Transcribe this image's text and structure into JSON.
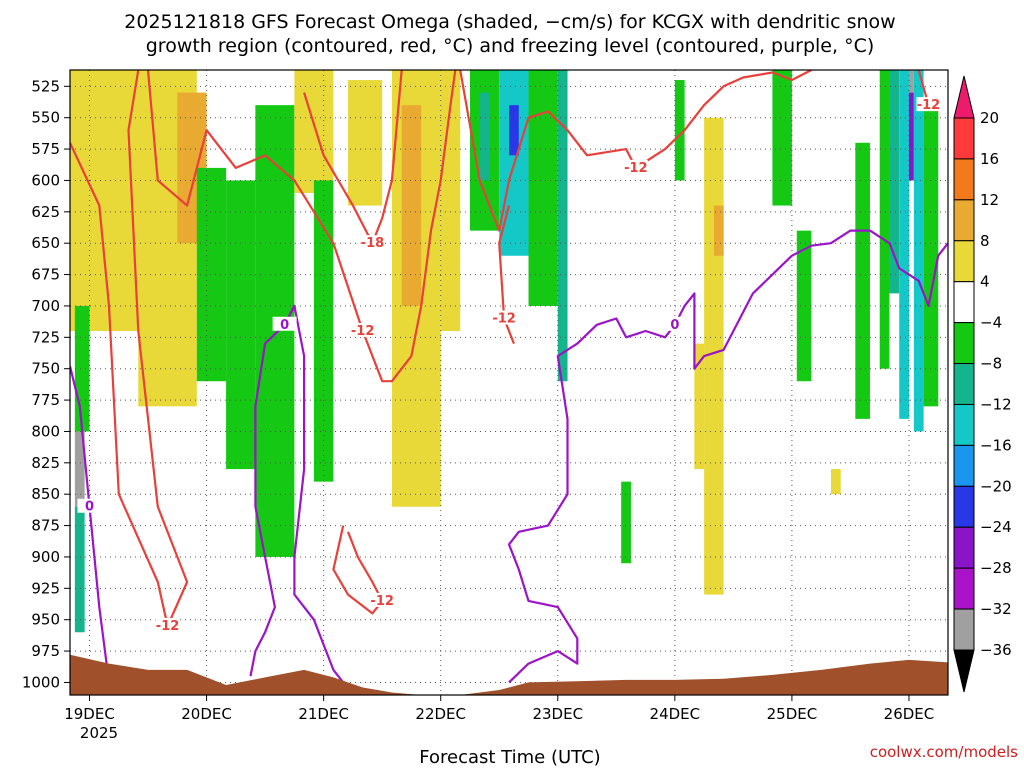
{
  "chart_data": {
    "type": "heatmap",
    "title_line1": "2025121818 GFS Forecast Omega (shaded, −cm/s) for KCGX with dendritic snow",
    "title_line2": "growth region (contoured, red, °C) and freezing level (contoured, purple, °C)",
    "xlabel": "Forecast Time (UTC)",
    "x_ticks": [
      "19DEC",
      "20DEC",
      "21DEC",
      "22DEC",
      "23DEC",
      "24DEC",
      "25DEC",
      "26DEC"
    ],
    "x_year": "2025",
    "y_ticks": [
      "525",
      "550",
      "575",
      "600",
      "625",
      "650",
      "675",
      "700",
      "725",
      "750",
      "775",
      "800",
      "825",
      "850",
      "875",
      "900",
      "925",
      "950",
      "975",
      "1000"
    ],
    "ylim_hPa": [
      1010,
      512
    ],
    "xlim_hours": [
      -4,
      176
    ],
    "ylabel": "",
    "colorbar_ticks": [
      "20",
      "16",
      "12",
      "8",
      "4",
      "−4",
      "−8",
      "−12",
      "−16",
      "−20",
      "−24",
      "−28",
      "−32",
      "−36"
    ],
    "colorbar_colors": [
      "#ee1a6c",
      "#ff3a3a",
      "#f27a1a",
      "#e8aa30",
      "#e8d838",
      "#ffffff",
      "#14c814",
      "#14b48c",
      "#14c8c8",
      "#1a96ee",
      "#2838e6",
      "#8a14c8",
      "#aa14c8",
      "#a0a0a0",
      "#000000"
    ],
    "omega_regions": [
      {
        "t0": -4,
        "t1": 14,
        "p0": 512,
        "p1": 720,
        "value": 5
      },
      {
        "t0": 10,
        "t1": 22,
        "p0": 512,
        "p1": 780,
        "value": 5
      },
      {
        "t0": 18,
        "t1": 24,
        "p0": 530,
        "p1": 650,
        "value": 9
      },
      {
        "t0": 22,
        "t1": 28,
        "p0": 590,
        "p1": 760,
        "value": -6
      },
      {
        "t0": 28,
        "t1": 34,
        "p0": 600,
        "p1": 830,
        "value": -6
      },
      {
        "t0": 34,
        "t1": 42,
        "p0": 540,
        "p1": 900,
        "value": -6
      },
      {
        "t0": 42,
        "t1": 50,
        "p0": 512,
        "p1": 610,
        "value": 5
      },
      {
        "t0": 46,
        "t1": 50,
        "p0": 600,
        "p1": 840,
        "value": -6
      },
      {
        "t0": 53,
        "t1": 60,
        "p0": 520,
        "p1": 620,
        "value": 5
      },
      {
        "t0": 62,
        "t1": 72,
        "p0": 512,
        "p1": 860,
        "value": 5
      },
      {
        "t0": 64,
        "t1": 68,
        "p0": 540,
        "p1": 700,
        "value": 9
      },
      {
        "t0": 72,
        "t1": 76,
        "p0": 512,
        "p1": 720,
        "value": 5
      },
      {
        "t0": 78,
        "t1": 84,
        "p0": 512,
        "p1": 640,
        "value": -6
      },
      {
        "t0": 80,
        "t1": 82,
        "p0": 530,
        "p1": 600,
        "value": -10
      },
      {
        "t0": 84,
        "t1": 90,
        "p0": 512,
        "p1": 660,
        "value": -14
      },
      {
        "t0": 86,
        "t1": 88,
        "p0": 540,
        "p1": 580,
        "value": -22
      },
      {
        "t0": 90,
        "t1": 96,
        "p0": 512,
        "p1": 700,
        "value": -6
      },
      {
        "t0": 96,
        "t1": 98,
        "p0": 512,
        "p1": 760,
        "value": -10
      },
      {
        "t0": 109,
        "t1": 111,
        "p0": 840,
        "p1": 905,
        "value": -6
      },
      {
        "t0": 120,
        "t1": 122,
        "p0": 520,
        "p1": 600,
        "value": -6
      },
      {
        "t0": 124,
        "t1": 126,
        "p0": 730,
        "p1": 830,
        "value": 5
      },
      {
        "t0": 126,
        "t1": 130,
        "p0": 550,
        "p1": 930,
        "value": 5
      },
      {
        "t0": 128,
        "t1": 130,
        "p0": 620,
        "p1": 660,
        "value": 9
      },
      {
        "t0": 140,
        "t1": 144,
        "p0": 512,
        "p1": 620,
        "value": -6
      },
      {
        "t0": 145,
        "t1": 148,
        "p0": 640,
        "p1": 760,
        "value": -6
      },
      {
        "t0": 152,
        "t1": 154,
        "p0": 830,
        "p1": 850,
        "value": 5
      },
      {
        "t0": 157,
        "t1": 160,
        "p0": 570,
        "p1": 790,
        "value": -6
      },
      {
        "t0": 162,
        "t1": 164,
        "p0": 512,
        "p1": 750,
        "value": -6
      },
      {
        "t0": 164,
        "t1": 166,
        "p0": 512,
        "p1": 690,
        "value": -10
      },
      {
        "t0": 166,
        "t1": 168,
        "p0": 512,
        "p1": 790,
        "value": -14
      },
      {
        "t0": 168,
        "t1": 169,
        "p0": 512,
        "p1": 530,
        "value": -34
      },
      {
        "t0": 168,
        "t1": 169,
        "p0": 530,
        "p1": 600,
        "value": -26
      },
      {
        "t0": 169,
        "t1": 171,
        "p0": 512,
        "p1": 800,
        "value": -14
      },
      {
        "t0": 171,
        "t1": 174,
        "p0": 540,
        "p1": 780,
        "value": -6
      },
      {
        "t0": -3,
        "t1": 0,
        "p0": 700,
        "p1": 800,
        "value": -6
      },
      {
        "t0": -3,
        "t1": -1,
        "p0": 800,
        "p1": 860,
        "value": -34
      },
      {
        "t0": -3,
        "t1": -1,
        "p0": 860,
        "p1": 960,
        "value": -10
      }
    ],
    "dgz_contours": [
      {
        "label": "-12",
        "points": [
          [
            -4,
            570
          ],
          [
            2,
            620
          ],
          [
            4,
            700
          ],
          [
            6,
            850
          ],
          [
            14,
            920
          ],
          [
            16,
            955
          ],
          [
            20,
            920
          ],
          [
            14,
            860
          ],
          [
            10,
            720
          ],
          [
            8,
            560
          ],
          [
            10,
            512
          ]
        ]
      },
      {
        "label": "-12",
        "points": [
          [
            12,
            512
          ],
          [
            14,
            600
          ],
          [
            20,
            620
          ],
          [
            24,
            560
          ],
          [
            30,
            590
          ],
          [
            36,
            580
          ],
          [
            42,
            600
          ],
          [
            50,
            650
          ],
          [
            56,
            720
          ],
          [
            60,
            760
          ],
          [
            62,
            760
          ],
          [
            66,
            740
          ],
          [
            68,
            700
          ],
          [
            70,
            640
          ],
          [
            72,
            600
          ],
          [
            74,
            540
          ],
          [
            75,
            512
          ]
        ]
      },
      {
        "label": "-18",
        "points": [
          [
            44,
            530
          ],
          [
            48,
            580
          ],
          [
            54,
            620
          ],
          [
            58,
            650
          ],
          [
            60,
            630
          ],
          [
            62,
            600
          ],
          [
            64,
            512
          ]
        ]
      },
      {
        "label": "-12",
        "points": [
          [
            76,
            512
          ],
          [
            80,
            600
          ],
          [
            84,
            640
          ],
          [
            86,
            600
          ],
          [
            90,
            550
          ],
          [
            94,
            545
          ],
          [
            98,
            560
          ],
          [
            102,
            580
          ],
          [
            110,
            575
          ],
          [
            112,
            590
          ],
          [
            118,
            575
          ],
          [
            122,
            560
          ],
          [
            126,
            540
          ],
          [
            130,
            525
          ],
          [
            134,
            518
          ],
          [
            140,
            514
          ],
          [
            144,
            520
          ],
          [
            148,
            512
          ]
        ]
      },
      {
        "label": "-12",
        "points": [
          [
            86,
            620
          ],
          [
            84,
            650
          ],
          [
            85,
            710
          ],
          [
            87,
            730
          ]
        ]
      },
      {
        "label": "-12",
        "points": [
          [
            52,
            875
          ],
          [
            50,
            910
          ],
          [
            53,
            930
          ],
          [
            58,
            945
          ],
          [
            60,
            935
          ],
          [
            58,
            920
          ],
          [
            55,
            900
          ],
          [
            53,
            880
          ]
        ]
      },
      {
        "label": "-12",
        "points": [
          [
            170,
            512
          ],
          [
            172,
            540
          ],
          [
            174,
            545
          ]
        ]
      }
    ],
    "freezing_contours": [
      {
        "label": "0",
        "points": [
          [
            -4,
            748
          ],
          [
            -2,
            780
          ],
          [
            0,
            860
          ],
          [
            2,
            940
          ],
          [
            4,
            1000
          ]
        ]
      },
      {
        "label": "0",
        "points": [
          [
            33,
            995
          ],
          [
            34,
            975
          ],
          [
            36,
            960
          ],
          [
            38,
            940
          ],
          [
            36,
            900
          ],
          [
            34,
            860
          ],
          [
            34,
            780
          ],
          [
            36,
            730
          ],
          [
            40,
            715
          ],
          [
            42,
            700
          ],
          [
            44,
            740
          ],
          [
            44,
            830
          ],
          [
            42,
            900
          ],
          [
            42,
            930
          ],
          [
            46,
            950
          ],
          [
            50,
            990
          ],
          [
            52,
            1000
          ]
        ]
      },
      {
        "label": "0",
        "points": [
          [
            86,
            1000
          ],
          [
            90,
            985
          ],
          [
            96,
            975
          ],
          [
            100,
            985
          ],
          [
            100,
            965
          ],
          [
            96,
            940
          ],
          [
            90,
            935
          ],
          [
            88,
            910
          ],
          [
            86,
            890
          ],
          [
            88,
            880
          ],
          [
            94,
            875
          ],
          [
            98,
            850
          ],
          [
            98,
            790
          ],
          [
            96,
            740
          ],
          [
            100,
            730
          ],
          [
            104,
            715
          ],
          [
            108,
            710
          ],
          [
            110,
            725
          ],
          [
            114,
            720
          ],
          [
            118,
            725
          ],
          [
            120,
            715
          ],
          [
            122,
            700
          ],
          [
            124,
            690
          ],
          [
            124,
            750
          ],
          [
            126,
            740
          ],
          [
            130,
            735
          ],
          [
            132,
            720
          ],
          [
            134,
            705
          ],
          [
            136,
            690
          ],
          [
            140,
            675
          ],
          [
            144,
            660
          ],
          [
            148,
            652
          ],
          [
            152,
            650
          ],
          [
            156,
            640
          ],
          [
            160,
            640
          ],
          [
            164,
            650
          ],
          [
            166,
            670
          ],
          [
            170,
            680
          ],
          [
            172,
            700
          ],
          [
            174,
            660
          ],
          [
            176,
            650
          ]
        ]
      }
    ],
    "terrain_profile": [
      [
        -4,
        978
      ],
      [
        4,
        985
      ],
      [
        12,
        990
      ],
      [
        20,
        990
      ],
      [
        28,
        1002
      ],
      [
        36,
        996
      ],
      [
        44,
        990
      ],
      [
        50,
        996
      ],
      [
        56,
        1004
      ],
      [
        62,
        1008
      ],
      [
        68,
        1010
      ],
      [
        76,
        1010
      ],
      [
        84,
        1006
      ],
      [
        90,
        1000
      ],
      [
        100,
        999
      ],
      [
        110,
        998
      ],
      [
        120,
        998
      ],
      [
        130,
        997
      ],
      [
        140,
        994
      ],
      [
        150,
        990
      ],
      [
        160,
        985
      ],
      [
        168,
        982
      ],
      [
        176,
        984
      ]
    ],
    "credit": "coolwx.com/models"
  }
}
